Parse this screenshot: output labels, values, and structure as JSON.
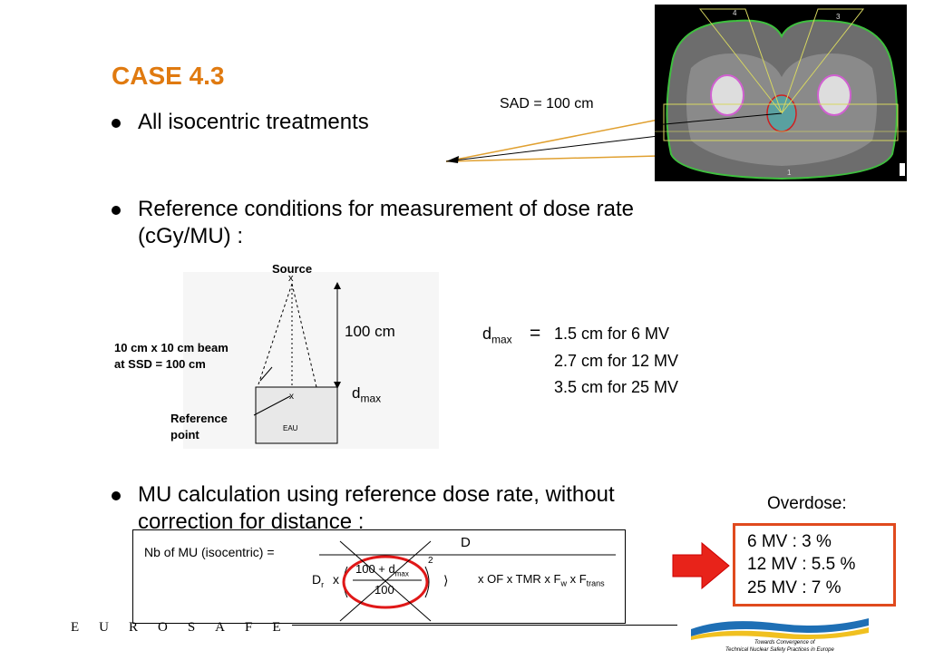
{
  "slide": {
    "title": "CASE 4.3",
    "bullet1": "All isocentric treatments",
    "sad_label": "SAD = 100 cm",
    "bullet2_line1": "Reference conditions for measurement of dose rate",
    "bullet2_line2": "(cGy/MU) :",
    "bullet3_line1": "MU calculation using reference dose rate, without",
    "bullet3_line2": "correction for distance :"
  },
  "ct_image": {
    "beam_labels": [
      "4",
      "3",
      "1"
    ]
  },
  "diagram": {
    "source": "Source",
    "source_mark": "x",
    "distance": "100 cm",
    "beam_label_line1": "10 cm x 10 cm beam",
    "beam_label_line2": "at SSD = 100 cm",
    "dmax": "d",
    "dmax_sub": "max",
    "ref_line1": "Reference",
    "ref_line2": "point",
    "water": "EAU",
    "ref_mark": "x"
  },
  "dmax_values": {
    "symbol": "d",
    "symbol_sub": "max",
    "equals": "=",
    "line1": "1.5 cm for 6 MV",
    "line2": "2.7 cm for 12 MV",
    "line3": "3.5 cm for 25 MV"
  },
  "formula": {
    "lhs": "Nb of MU (isocentric) =",
    "numerator": "D",
    "dr": "D",
    "dr_sub": "r",
    "times1": "x",
    "inner_num": "100 + d",
    "inner_num_sub": "max",
    "inner_den": "100",
    "exponent": "2",
    "rest": "x OF x TMR x F",
    "rest_w": "w",
    "rest_x": " x F",
    "rest_trans": "trans"
  },
  "overdose": {
    "title": "Overdose:",
    "lines": [
      "6 MV   : 3 %",
      "12 MV : 5.5 %",
      "25 MV : 7 %"
    ],
    "border_color": "#e04a1e",
    "arrow_color": "#e8231a"
  },
  "footer": {
    "brand": "EUROSAFE",
    "tagline_line1": "Towards Convergence of",
    "tagline_line2": "Technical Nuclear Safety Practices in Europe"
  },
  "colors": {
    "title": "#e07a10",
    "sad_lines": "#e0a030",
    "circle": "#e01818"
  }
}
